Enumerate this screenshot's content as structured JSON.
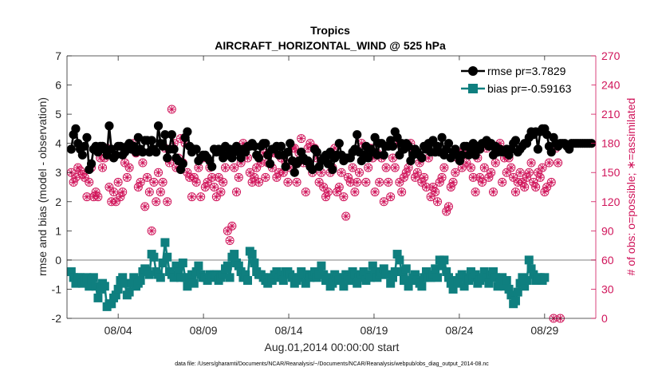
{
  "chart_data": {
    "type": "line",
    "title": "Tropics",
    "subtitle": "AIRCRAFT_HORIZONTAL_WIND @ 525 hPa",
    "xlabel": "Aug.01,2014 00:00:00 start",
    "ylabel": "rmse and bias (model - observation)",
    "ylabel_right": "# of obs: o=possible; ∗=assimilated",
    "footnote": "data file: /Users/gharamti/Documents/NCAR/Reanalysis/~/Documents/NCAR/Reanalysis/webpub/obs_diag_output_2014-08.nc",
    "xlim": [
      1.0,
      32.0
    ],
    "ylim": [
      -2,
      7
    ],
    "ylim_right": [
      0,
      270
    ],
    "x_ticks": [
      {
        "value": 4,
        "label": "08/04"
      },
      {
        "value": 9,
        "label": "08/09"
      },
      {
        "value": 14,
        "label": "08/14"
      },
      {
        "value": 19,
        "label": "08/19"
      },
      {
        "value": 24,
        "label": "08/24"
      },
      {
        "value": 29,
        "label": "08/29"
      }
    ],
    "y_ticks": [
      -2,
      -1,
      0,
      1,
      2,
      3,
      4,
      5,
      6,
      7
    ],
    "y_ticks_right": [
      0,
      30,
      60,
      90,
      120,
      150,
      180,
      210,
      240,
      270
    ],
    "series": [
      {
        "name": "rmse",
        "legend": "rmse pr=3.7829",
        "color": "#000000",
        "marker": "circle",
        "values": [
          3.8,
          4.3,
          4.5,
          4.0,
          3.8,
          3.6,
          3.9,
          4.2,
          3.1,
          3.3,
          3.8,
          3.9,
          3.7,
          3.9,
          3.9,
          3.8,
          3.6,
          4.6,
          3.8,
          3.5,
          3.6,
          3.9,
          3.9,
          3.6,
          3.7,
          3.9,
          4.0,
          3.8,
          3.9,
          3.7,
          4.2,
          3.8,
          3.7,
          4.1,
          4.1,
          3.7,
          4.1,
          3.8,
          3.7,
          4.6,
          4.0,
          3.9,
          4.3,
          3.5,
          3.8,
          4.3,
          3.8,
          3.5,
          3.4,
          3.1,
          3.3,
          4.2,
          4.4,
          3.9,
          3.7,
          3.8,
          3.8,
          3.4,
          3.5,
          3.6,
          3.6,
          3.5,
          3.4,
          3.2,
          3.8,
          3.7,
          3.8,
          3.7,
          3.5,
          3.9,
          3.6,
          3.8,
          3.5,
          3.7,
          3.9,
          3.7,
          3.5,
          3.8,
          3.7,
          3.9,
          3.9,
          4.0,
          3.9,
          3.6,
          3.5,
          3.9,
          4.0,
          4.0,
          3.6,
          3.3,
          3.8,
          3.8,
          3.9,
          3.6,
          3.9,
          3.6,
          3.2,
          3.7,
          4.0,
          3.4,
          3.0,
          3.3,
          3.4,
          3.7,
          3.5,
          3.4,
          3.4,
          3.2,
          3.1,
          3.8,
          3.7,
          3.2,
          3.4,
          3.5,
          3.6,
          3.3,
          3.7,
          3.1,
          3.5,
          3.6,
          4.0,
          3.6,
          3.4,
          3.5,
          3.5,
          3.5,
          3.7,
          3.8,
          4.3,
          3.7,
          3.4,
          3.6,
          3.9,
          3.5,
          3.8,
          3.7,
          4.2,
          3.6,
          4.0,
          4.0,
          3.6,
          3.9,
          3.9,
          4.1,
          3.9,
          4.4,
          4.2,
          3.6,
          4.0,
          3.8,
          4.0,
          3.9,
          3.4,
          3.6,
          3.8,
          3.7,
          3.6,
          3.5,
          3.9,
          3.8,
          4.0,
          3.7,
          4.1,
          3.7,
          3.9,
          3.7,
          4.2,
          3.6,
          3.8,
          4.0,
          3.5,
          3.7,
          3.8,
          3.6,
          3.4,
          3.6,
          3.9,
          3.9,
          3.6,
          3.8,
          4.0,
          3.6,
          3.9,
          3.8,
          4.0,
          4.0,
          4.1,
          3.9,
          4.0,
          3.6,
          3.9,
          3.7,
          3.8,
          3.7,
          3.7,
          3.8,
          3.6,
          3.8,
          4.0,
          4.1,
          3.7,
          3.8,
          3.9,
          4.0,
          4.0,
          4.2,
          4.4,
          4.3,
          4.4,
          3.8,
          4.4,
          4.5,
          4.5,
          4.3,
          3.9,
          3.7,
          4.2,
          4.0,
          3.9,
          4.0,
          4.0,
          4.0,
          3.9,
          3.8,
          4.0,
          4.0,
          4.0,
          4.0,
          4.0,
          4.0,
          4.0,
          4.0,
          4.0,
          4.0
        ]
      },
      {
        "name": "bias",
        "legend": "bias pr=-0.59163",
        "color": "#0f7f7f",
        "marker": "square",
        "values": [
          -0.4,
          -0.6,
          -0.8,
          -0.6,
          -0.6,
          -0.8,
          -0.7,
          -0.6,
          -0.9,
          -0.7,
          -0.6,
          -0.9,
          -1.3,
          -1.0,
          -0.8,
          -0.9,
          -1.6,
          -1.5,
          -1.5,
          -1.3,
          -1.2,
          -1.0,
          -0.7,
          -0.6,
          -0.8,
          -1.2,
          -1.1,
          -0.8,
          -0.6,
          -0.9,
          -0.8,
          -0.7,
          -0.4,
          -0.3,
          -0.4,
          -0.5,
          0.2,
          0.1,
          -0.4,
          -0.5,
          -0.6,
          -0.1,
          0.6,
          0.1,
          -0.4,
          -0.5,
          -0.6,
          -0.2,
          -0.4,
          -0.6,
          -0.1,
          -0.6,
          -0.9,
          -0.6,
          -0.5,
          -0.8,
          -0.4,
          -0.2,
          -0.5,
          -0.6,
          -0.6,
          -0.7,
          -0.5,
          -0.6,
          -0.5,
          -0.5,
          -0.7,
          -0.6,
          -0.5,
          -0.3,
          -0.2,
          -0.6,
          0.1,
          0.2,
          -0.1,
          -0.2,
          -0.4,
          -0.6,
          -0.5,
          -0.7,
          0.3,
          0.2,
          -0.1,
          -0.4,
          -0.5,
          -0.5,
          -0.6,
          -0.7,
          -0.8,
          -0.6,
          -0.7,
          -0.5,
          -0.4,
          -0.6,
          -0.5,
          -0.7,
          -0.4,
          -0.4,
          -0.5,
          -0.6,
          -0.8,
          -0.7,
          -0.6,
          -0.4,
          -0.5,
          -0.8,
          -0.5,
          -0.6,
          -0.5,
          -0.4,
          -0.6,
          -0.5,
          -0.2,
          -0.5,
          -0.7,
          -0.6,
          -0.9,
          -0.8,
          -0.5,
          -0.6,
          -0.7,
          -0.6,
          -0.9,
          -0.5,
          -0.6,
          -0.7,
          -0.4,
          -0.5,
          -0.8,
          -0.6,
          -0.5,
          -0.4,
          -0.7,
          -0.5,
          -0.6,
          -0.2,
          -0.4,
          -0.6,
          -0.5,
          -0.4,
          -0.3,
          -0.5,
          -0.5,
          -0.8,
          -0.6,
          -0.4,
          0.2,
          0.0,
          -0.4,
          -0.7,
          -0.3,
          -0.9,
          -0.7,
          -0.6,
          -0.5,
          -0.7,
          -0.8,
          -0.9,
          -0.6,
          -0.4,
          -0.6,
          -0.6,
          -0.5,
          -0.3,
          -0.6,
          0.0,
          -0.2,
          0.0,
          -0.4,
          -0.6,
          -0.8,
          -1.0,
          -0.7,
          -0.8,
          -0.6,
          -0.5,
          -0.9,
          -0.6,
          -0.7,
          -0.4,
          -0.6,
          -0.5,
          -0.8,
          -0.7,
          -0.6,
          -0.4,
          -0.6,
          -0.8,
          -0.5,
          -0.4,
          -0.6,
          -0.9,
          -0.8,
          -0.6,
          -0.9,
          -0.7,
          -1.0,
          -1.2,
          -1.5,
          -1.4,
          -1.1,
          -0.8,
          -0.6,
          -0.9,
          -0.7,
          0.0,
          -0.3,
          -0.5,
          -0.7,
          -0.6,
          -0.6,
          -0.7,
          -0.6
        ]
      }
    ],
    "obs_possible": [
      150,
      140,
      145,
      155,
      152,
      148,
      145,
      125,
      140,
      155,
      125,
      130,
      125,
      165,
      155,
      165,
      175,
      135,
      120,
      130,
      120,
      140,
      125,
      130,
      160,
      145,
      155,
      175,
      180,
      170,
      135,
      140,
      160,
      115,
      145,
      130,
      90,
      140,
      120,
      150,
      130,
      140,
      175,
      120,
      160,
      215,
      180,
      155,
      165,
      185,
      160,
      180,
      150,
      145,
      125,
      145,
      140,
      155,
      125,
      165,
      135,
      140,
      155,
      145,
      135,
      125,
      145,
      130,
      140,
      155,
      90,
      80,
      95,
      155,
      130,
      145,
      160,
      180,
      175,
      165,
      150,
      140,
      145,
      155,
      140,
      160,
      170,
      145,
      160,
      170,
      155,
      170,
      145,
      150,
      165,
      150,
      160,
      140,
      155,
      175,
      175,
      140,
      170,
      185,
      160,
      130,
      175,
      180,
      150,
      175,
      165,
      140,
      150,
      135,
      125,
      130,
      150,
      155,
      175,
      130,
      135,
      150,
      125,
      105,
      145,
      140,
      155,
      130,
      140,
      150,
      180,
      165,
      140,
      155,
      175,
      165,
      130,
      170,
      140,
      165,
      120,
      155,
      140,
      125,
      165,
      155,
      180,
      140,
      130,
      145,
      150,
      155,
      180,
      170,
      145,
      150,
      160,
      140,
      145,
      135,
      165,
      125,
      135,
      130,
      120,
      140,
      145,
      155,
      110,
      115,
      135,
      140,
      150,
      165,
      170,
      155,
      175,
      160,
      170,
      155,
      145,
      130,
      165,
      145,
      140,
      155,
      175,
      145,
      150,
      130,
      160,
      175,
      180,
      140,
      165,
      150,
      165,
      155,
      145,
      130,
      140,
      150,
      140,
      135,
      145,
      150,
      160,
      140,
      135,
      150,
      145,
      155,
      130,
      135,
      160,
      140,
      0,
      175,
      160,
      0
    ],
    "obs_assimilated": [
      150,
      140,
      145,
      155,
      152,
      148,
      145,
      125,
      140,
      155,
      125,
      130,
      125,
      165,
      155,
      165,
      175,
      135,
      120,
      130,
      120,
      140,
      125,
      130,
      160,
      145,
      155,
      175,
      180,
      170,
      135,
      140,
      160,
      115,
      145,
      130,
      90,
      140,
      120,
      150,
      130,
      140,
      175,
      120,
      160,
      215,
      180,
      155,
      165,
      185,
      160,
      180,
      150,
      145,
      125,
      145,
      140,
      155,
      125,
      165,
      135,
      140,
      155,
      145,
      135,
      125,
      145,
      130,
      140,
      155,
      90,
      80,
      95,
      155,
      130,
      145,
      160,
      180,
      175,
      165,
      150,
      140,
      145,
      155,
      140,
      160,
      170,
      145,
      160,
      170,
      155,
      170,
      145,
      150,
      165,
      150,
      160,
      140,
      155,
      175,
      175,
      140,
      170,
      185,
      160,
      130,
      175,
      180,
      150,
      175,
      165,
      140,
      150,
      135,
      125,
      130,
      150,
      155,
      175,
      130,
      135,
      150,
      125,
      105,
      145,
      140,
      155,
      130,
      140,
      150,
      180,
      165,
      140,
      155,
      175,
      165,
      130,
      170,
      140,
      165,
      120,
      155,
      140,
      125,
      165,
      155,
      180,
      140,
      130,
      145,
      150,
      155,
      180,
      170,
      145,
      150,
      160,
      140,
      145,
      135,
      165,
      125,
      135,
      130,
      120,
      140,
      145,
      155,
      110,
      115,
      135,
      140,
      150,
      165,
      170,
      155,
      175,
      160,
      170,
      155,
      145,
      130,
      165,
      145,
      140,
      155,
      175,
      145,
      150,
      130,
      160,
      175,
      180,
      140,
      165,
      150,
      165,
      155,
      145,
      130,
      140,
      150,
      140,
      135,
      145,
      150,
      160,
      140,
      135,
      150,
      145,
      155,
      130,
      135,
      160,
      140,
      0,
      175,
      160,
      0
    ],
    "zero_line": 0,
    "grid": false,
    "legend_position": "top-right"
  }
}
